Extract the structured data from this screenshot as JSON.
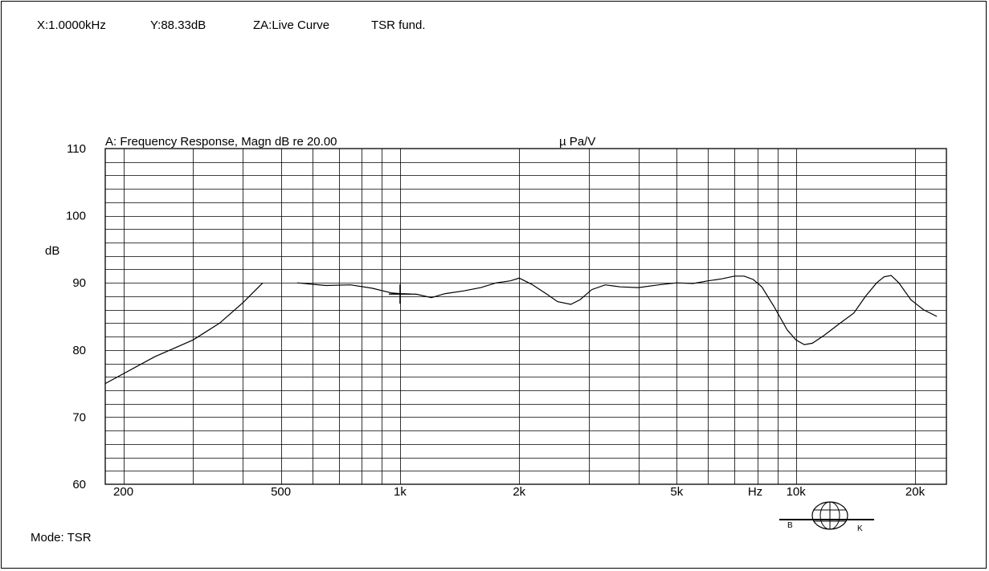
{
  "readout": {
    "x": "X:1.0000kHz",
    "y": "Y:88.33dB",
    "za": "ZA:Live Curve",
    "mode_label": "TSR fund."
  },
  "footer": {
    "mode": "Mode: TSR"
  },
  "logo": {
    "left_letter": "B",
    "right_letter": "K"
  },
  "chart_data": {
    "type": "line",
    "title": "A: Frequency Response, Magn dB re 20.00",
    "unit_label": "µ Pa/V",
    "ylabel": "dB",
    "xlabel": "Hz",
    "x_scale": "log",
    "xlim": [
      180,
      24000
    ],
    "ylim": [
      60,
      110
    ],
    "y_ticks": [
      {
        "v": 110,
        "label": "110"
      },
      {
        "v": 100,
        "label": "100"
      },
      {
        "v": 90,
        "label": "90"
      },
      {
        "v": 80,
        "label": "80"
      },
      {
        "v": 70,
        "label": "70"
      },
      {
        "v": 60,
        "label": "60"
      }
    ],
    "x_ticks": [
      {
        "v": 200,
        "label": "200"
      },
      {
        "v": 500,
        "label": "500"
      },
      {
        "v": 1000,
        "label": "1k"
      },
      {
        "v": 2000,
        "label": "2k"
      },
      {
        "v": 5000,
        "label": "5k"
      },
      {
        "v": 10000,
        "label": "10k"
      },
      {
        "v": 20000,
        "label": "20k"
      }
    ],
    "grid": true,
    "cursor": {
      "x": 1000,
      "y": 88.33
    },
    "series": [
      {
        "segments": [
          [
            [
              180,
              75
            ],
            [
              240,
              79
            ],
            [
              300,
              81.5
            ],
            [
              350,
              84
            ],
            [
              400,
              87
            ],
            [
              450,
              90
            ]
          ],
          [
            [
              550,
              90
            ],
            [
              650,
              89.6
            ],
            [
              750,
              89.7
            ],
            [
              850,
              89.2
            ],
            [
              950,
              88.5
            ],
            [
              1000,
              88.4
            ],
            [
              1100,
              88.3
            ],
            [
              1200,
              87.8
            ],
            [
              1300,
              88.4
            ],
            [
              1450,
              88.8
            ],
            [
              1600,
              89.3
            ],
            [
              1750,
              90
            ],
            [
              1900,
              90.3
            ],
            [
              2000,
              90.7
            ],
            [
              2150,
              89.8
            ],
            [
              2350,
              88.3
            ],
            [
              2500,
              87.2
            ],
            [
              2700,
              86.8
            ],
            [
              2850,
              87.5
            ],
            [
              3050,
              89
            ],
            [
              3300,
              89.7
            ],
            [
              3600,
              89.4
            ],
            [
              4000,
              89.3
            ],
            [
              4500,
              89.7
            ],
            [
              5000,
              90
            ],
            [
              5500,
              89.9
            ],
            [
              6000,
              90.3
            ],
            [
              6500,
              90.6
            ],
            [
              7000,
              91
            ],
            [
              7400,
              91
            ],
            [
              7800,
              90.5
            ],
            [
              8200,
              89.4
            ],
            [
              8800,
              86.5
            ],
            [
              9500,
              83
            ],
            [
              10000,
              81.5
            ],
            [
              10500,
              80.8
            ],
            [
              11000,
              81
            ],
            [
              11800,
              82.2
            ],
            [
              12800,
              83.8
            ],
            [
              14000,
              85.5
            ],
            [
              15000,
              88
            ],
            [
              16000,
              90
            ],
            [
              16700,
              90.9
            ],
            [
              17400,
              91.1
            ],
            [
              18200,
              90
            ],
            [
              19500,
              87.5
            ],
            [
              21000,
              86
            ],
            [
              22700,
              85
            ]
          ]
        ]
      }
    ]
  }
}
